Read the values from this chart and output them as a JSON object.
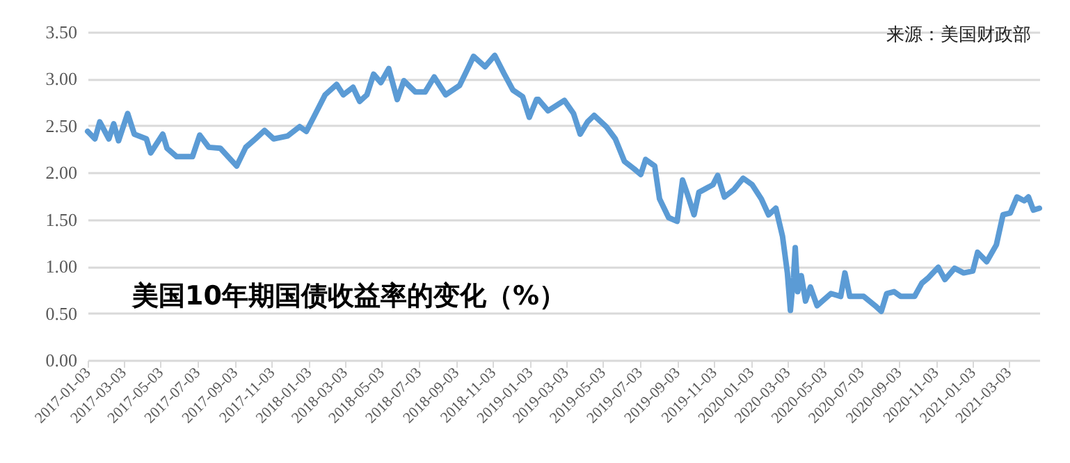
{
  "chart_data": {
    "type": "line",
    "title": "美国10年期国债收益率的变化（%）",
    "annotations": [
      "来源：美国财政部"
    ],
    "x": [
      "2017-01-03",
      "2017-01-15",
      "2017-01-23",
      "2017-02-07",
      "2017-02-15",
      "2017-02-23",
      "2017-03-10",
      "2017-03-21",
      "2017-04-10",
      "2017-04-17",
      "2017-05-07",
      "2017-05-14",
      "2017-05-30",
      "2017-06-25",
      "2017-07-07",
      "2017-07-22",
      "2017-08-10",
      "2017-09-06",
      "2017-09-21",
      "2017-10-07",
      "2017-10-22",
      "2017-11-06",
      "2017-11-29",
      "2017-12-19",
      "2017-12-30",
      "2018-01-11",
      "2018-01-30",
      "2018-02-18",
      "2018-03-01",
      "2018-03-17",
      "2018-03-28",
      "2018-04-09",
      "2018-04-20",
      "2018-05-02",
      "2018-05-15",
      "2018-05-29",
      "2018-06-09",
      "2018-06-28",
      "2018-07-14",
      "2018-07-29",
      "2018-08-17",
      "2018-09-09",
      "2018-09-21",
      "2018-10-02",
      "2018-10-21",
      "2018-11-06",
      "2018-11-21",
      "2018-12-06",
      "2018-12-22",
      "2019-01-02",
      "2019-01-14",
      "2019-01-17",
      "2019-02-02",
      "2019-03-01",
      "2019-03-16",
      "2019-03-27",
      "2019-04-08",
      "2019-04-19",
      "2019-05-09",
      "2019-05-24",
      "2019-06-08",
      "2019-06-24",
      "2019-07-05",
      "2019-07-13",
      "2019-07-28",
      "2019-08-05",
      "2019-08-20",
      "2019-09-03",
      "2019-09-12",
      "2019-09-20",
      "2019-10-01",
      "2019-10-09",
      "2019-11-01",
      "2019-11-09",
      "2019-11-20",
      "2019-12-06",
      "2019-12-21",
      "2020-01-05",
      "2020-01-20",
      "2020-02-01",
      "2020-02-13",
      "2020-02-24",
      "2020-03-03",
      "2020-03-08",
      "2020-03-13",
      "2020-03-16",
      "2020-03-20",
      "2020-03-26",
      "2020-04-02",
      "2020-04-10",
      "2020-04-21",
      "2020-05-14",
      "2020-05-30",
      "2020-06-06",
      "2020-06-14",
      "2020-07-07",
      "2020-07-26",
      "2020-08-05",
      "2020-08-14",
      "2020-08-26",
      "2020-09-06",
      "2020-09-29",
      "2020-10-11",
      "2020-10-22",
      "2020-11-07",
      "2020-11-18",
      "2020-12-04",
      "2020-12-19",
      "2021-01-03",
      "2021-01-11",
      "2021-01-26",
      "2021-02-11",
      "2021-02-22",
      "2021-03-06",
      "2021-03-17",
      "2021-03-29",
      "2021-04-05",
      "2021-04-13",
      "2021-04-23"
    ],
    "series": [
      {
        "color": "#5b9bd5",
        "values": [
          2.44,
          2.36,
          2.54,
          2.36,
          2.52,
          2.34,
          2.63,
          2.41,
          2.36,
          2.21,
          2.41,
          2.26,
          2.17,
          2.17,
          2.4,
          2.27,
          2.26,
          2.07,
          2.27,
          2.36,
          2.45,
          2.36,
          2.39,
          2.49,
          2.44,
          2.59,
          2.83,
          2.94,
          2.83,
          2.91,
          2.76,
          2.83,
          3.05,
          2.96,
          3.11,
          2.78,
          2.98,
          2.86,
          2.86,
          3.02,
          2.83,
          2.93,
          3.09,
          3.24,
          3.13,
          3.25,
          3.06,
          2.88,
          2.81,
          2.59,
          2.78,
          2.78,
          2.66,
          2.77,
          2.63,
          2.41,
          2.54,
          2.61,
          2.49,
          2.36,
          2.12,
          2.04,
          1.98,
          2.14,
          2.07,
          1.72,
          1.52,
          1.48,
          1.92,
          1.77,
          1.55,
          1.79,
          1.87,
          1.97,
          1.74,
          1.82,
          1.94,
          1.87,
          1.72,
          1.55,
          1.62,
          1.32,
          0.93,
          0.53,
          0.88,
          1.2,
          0.73,
          0.9,
          0.63,
          0.78,
          0.58,
          0.71,
          0.68,
          0.93,
          0.68,
          0.68,
          0.58,
          0.52,
          0.71,
          0.73,
          0.68,
          0.68,
          0.82,
          0.88,
          0.99,
          0.86,
          0.98,
          0.93,
          0.95,
          1.15,
          1.05,
          1.23,
          1.55,
          1.57,
          1.74,
          1.7,
          1.74,
          1.6,
          1.62
        ]
      }
    ],
    "xlim": [
      "2017-01-03",
      "2021-04-23"
    ],
    "xticks": [
      "2017-01-03",
      "2017-03-03",
      "2017-05-03",
      "2017-07-03",
      "2017-09-03",
      "2017-11-03",
      "2018-01-03",
      "2018-03-03",
      "2018-05-03",
      "2018-07-03",
      "2018-09-03",
      "2018-11-03",
      "2019-01-03",
      "2019-03-03",
      "2019-05-03",
      "2019-07-03",
      "2019-09-03",
      "2019-11-03",
      "2020-01-03",
      "2020-03-03",
      "2020-05-03",
      "2020-07-03",
      "2020-09-03",
      "2020-11-03",
      "2021-01-03",
      "2021-03-03"
    ],
    "ylim": [
      0,
      3.5
    ],
    "yticks": [
      {
        "value": 0,
        "label": "0.00"
      },
      {
        "value": 0.5,
        "label": "0.50"
      },
      {
        "value": 1,
        "label": "1.00"
      },
      {
        "value": 1.5,
        "label": "1.50"
      },
      {
        "value": 2,
        "label": "2.00"
      },
      {
        "value": 2.5,
        "label": "2.50"
      },
      {
        "value": 3,
        "label": "3.00"
      },
      {
        "value": 3.5,
        "label": "3.50"
      }
    ],
    "grid": "y",
    "marker": "none",
    "line_style": "solid"
  }
}
